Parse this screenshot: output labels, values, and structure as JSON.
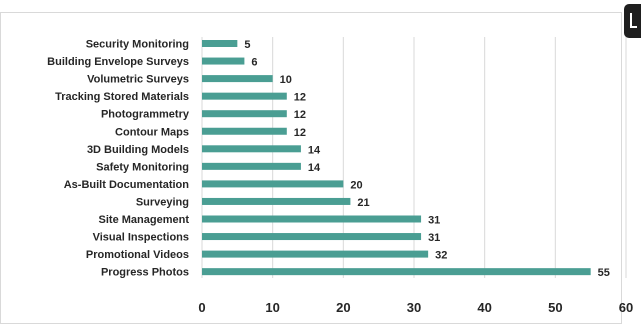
{
  "chart_data": {
    "type": "bar",
    "orientation": "horizontal",
    "title": "",
    "xlabel": "",
    "ylabel": "",
    "categories": [
      "Security Monitoring",
      "Building Envelope Surveys",
      "Volumetric Surveys",
      "Tracking Stored Materials",
      "Photogrammetry",
      "Contour Maps",
      "3D Building Models",
      "Safety Monitoring",
      "As-Built Documentation",
      "Surveying",
      "Site Management",
      "Visual Inspections",
      "Promotional Videos",
      "Progress Photos"
    ],
    "values": [
      5,
      6,
      10,
      12,
      12,
      12,
      14,
      14,
      20,
      21,
      31,
      31,
      32,
      55
    ],
    "xlim": [
      0,
      60
    ],
    "xticks": [
      "0",
      "10",
      "20",
      "30",
      "40",
      "50",
      "60"
    ],
    "grid": "vertical",
    "legend": "none",
    "bar_color": "#4a9e93"
  }
}
